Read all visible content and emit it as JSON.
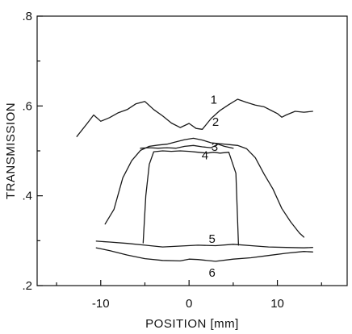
{
  "chart_data": {
    "type": "line",
    "xlabel": "POSITION [mm]",
    "ylabel": "TRANSMISSION",
    "xlim": [
      -17.2,
      17.9
    ],
    "ylim": [
      0.2,
      0.8
    ],
    "x_ticks": [
      -10,
      0,
      10
    ],
    "x_tick_labels": [
      "-10",
      "0",
      "10"
    ],
    "y_ticks": [
      0.2,
      0.4,
      0.6,
      0.8
    ],
    "y_tick_labels": [
      ".2",
      ".4",
      ".6",
      ".8"
    ],
    "grid": false,
    "legend": "none",
    "series": [
      {
        "label": "1",
        "label_at": [
          2.8,
          0.605
        ],
        "x": [
          -12.7,
          -11.5,
          -10.8,
          -10.0,
          -9.0,
          -8.0,
          -7.0,
          -6.0,
          -5.0,
          -4.0,
          -3.0,
          -2.0,
          -1.0,
          0.0,
          0.8,
          1.5,
          2.5,
          3.5,
          4.5,
          5.5,
          6.5,
          7.5,
          8.5,
          9.5,
          10.0,
          10.5,
          11.0,
          12.0,
          13.0,
          14.0
        ],
        "y": [
          0.532,
          0.562,
          0.58,
          0.566,
          0.574,
          0.585,
          0.592,
          0.605,
          0.61,
          0.592,
          0.578,
          0.562,
          0.552,
          0.561,
          0.55,
          0.548,
          0.572,
          0.59,
          0.603,
          0.615,
          0.608,
          0.602,
          0.598,
          0.588,
          0.583,
          0.575,
          0.58,
          0.588,
          0.586,
          0.588
        ]
      },
      {
        "label": "2",
        "label_at": [
          3.0,
          0.556
        ],
        "x": [
          -9.5,
          -8.5,
          -7.5,
          -6.5,
          -5.5,
          -4.5,
          -3.5,
          -2.5,
          -1.5,
          -0.5,
          0.5,
          1.5,
          2.5,
          3.5,
          4.5,
          5.5,
          6.5,
          7.5,
          8.5,
          9.5,
          10.5,
          11.5,
          12.5,
          13.0
        ],
        "y": [
          0.337,
          0.37,
          0.44,
          0.478,
          0.501,
          0.51,
          0.513,
          0.515,
          0.52,
          0.525,
          0.528,
          0.524,
          0.518,
          0.516,
          0.514,
          0.512,
          0.505,
          0.485,
          0.448,
          0.415,
          0.372,
          0.342,
          0.317,
          0.308
        ]
      },
      {
        "label": "3",
        "label_at": [
          2.9,
          0.5
        ],
        "x": [
          -5.5,
          -4.5,
          -3.5,
          -2.5,
          -1.5,
          -0.5,
          0.5,
          1.5,
          2.5,
          3.3,
          4.0,
          5.0
        ],
        "y": [
          0.506,
          0.507,
          0.506,
          0.507,
          0.506,
          0.51,
          0.512,
          0.509,
          0.507,
          0.515,
          0.51,
          0.506
        ]
      },
      {
        "label": "4",
        "label_at": [
          1.8,
          0.481
        ],
        "x": [
          -5.2,
          -4.9,
          -4.5,
          -4.0,
          -3.0,
          -2.0,
          -1.0,
          0.0,
          1.0,
          2.0,
          2.8,
          3.5,
          4.5,
          5.3,
          5.6
        ],
        "y": [
          0.295,
          0.4,
          0.47,
          0.498,
          0.5,
          0.499,
          0.5,
          0.499,
          0.497,
          0.495,
          0.497,
          0.495,
          0.497,
          0.45,
          0.29
        ]
      },
      {
        "label": "5",
        "label_at": [
          2.6,
          0.295
        ],
        "x": [
          -10.5,
          -9.0,
          -7.0,
          -5.0,
          -3.0,
          -1.0,
          1.0,
          3.0,
          5.0,
          7.0,
          9.0,
          11.0,
          13.0,
          14.0
        ],
        "y": [
          0.299,
          0.297,
          0.294,
          0.29,
          0.286,
          0.288,
          0.29,
          0.289,
          0.292,
          0.289,
          0.286,
          0.285,
          0.284,
          0.285
        ]
      },
      {
        "label": "6",
        "label_at": [
          2.6,
          0.22
        ],
        "x": [
          -10.5,
          -9.0,
          -7.0,
          -5.0,
          -3.0,
          -1.0,
          0.0,
          1.0,
          3.0,
          5.0,
          7.0,
          9.0,
          11.0,
          13.0,
          14.0
        ],
        "y": [
          0.284,
          0.278,
          0.268,
          0.26,
          0.256,
          0.255,
          0.259,
          0.258,
          0.254,
          0.259,
          0.262,
          0.267,
          0.272,
          0.276,
          0.275
        ]
      }
    ]
  }
}
